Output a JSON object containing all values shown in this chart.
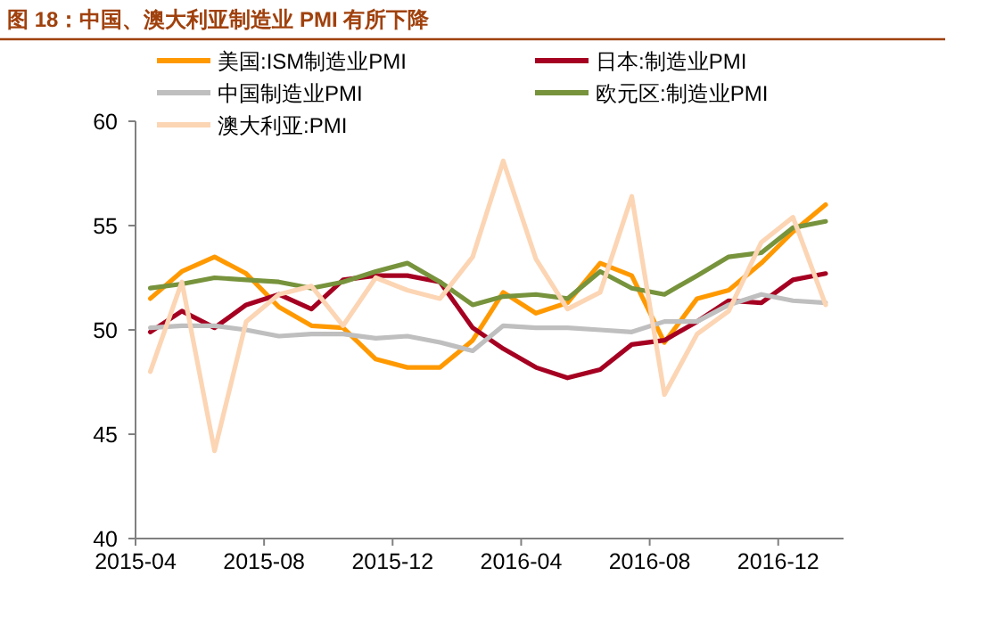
{
  "chart_data": {
    "type": "line",
    "title": "图 18：中国、澳大利亚制造业 PMI 有所下降",
    "x": [
      "2015-04-15",
      "2015-05-15",
      "2015-06-15",
      "2015-07-15",
      "2015-08-15",
      "2015-09-15",
      "2015-10-15",
      "2015-11-15",
      "2015-12-15",
      "2016-01-15",
      "2016-02-15",
      "2016-03-15",
      "2016-04-15",
      "2016-05-15",
      "2016-06-15",
      "2016-07-15",
      "2016-08-15",
      "2016-09-15",
      "2016-10-15",
      "2016-11-15",
      "2016-12-15",
      "2017-01-15"
    ],
    "series": [
      {
        "name": "美国:ISM制造业PMI",
        "color": "#ff9900",
        "values": [
          51.5,
          52.8,
          53.5,
          52.7,
          51.1,
          50.2,
          50.1,
          48.6,
          48.2,
          48.2,
          49.5,
          51.8,
          50.8,
          51.3,
          53.2,
          52.6,
          49.4,
          51.5,
          51.9,
          53.2,
          54.7,
          56.0
        ]
      },
      {
        "name": "日本:制造业PMI",
        "color": "#a50021",
        "values": [
          49.9,
          50.9,
          50.1,
          51.2,
          51.7,
          51.0,
          52.4,
          52.6,
          52.6,
          52.3,
          50.1,
          49.1,
          48.2,
          47.7,
          48.1,
          49.3,
          49.5,
          50.4,
          51.4,
          51.3,
          52.4,
          52.7
        ]
      },
      {
        "name": "中国制造业PMI",
        "color": "#bfbfbf",
        "values": [
          50.1,
          50.2,
          50.2,
          50.0,
          49.7,
          49.8,
          49.8,
          49.6,
          49.7,
          49.4,
          49.0,
          50.2,
          50.1,
          50.1,
          50.0,
          49.9,
          50.4,
          50.4,
          51.2,
          51.7,
          51.4,
          51.3
        ]
      },
      {
        "name": "欧元区:制造业PMI",
        "color": "#77933c",
        "values": [
          52.0,
          52.2,
          52.5,
          52.4,
          52.3,
          52.0,
          52.3,
          52.8,
          53.2,
          52.3,
          51.2,
          51.6,
          51.7,
          51.5,
          52.8,
          52.0,
          51.7,
          52.6,
          53.5,
          53.7,
          54.9,
          55.2
        ]
      },
      {
        "name": "澳大利亚:PMI",
        "color": "#fcd5b4",
        "values": [
          48.0,
          52.3,
          44.2,
          50.4,
          51.7,
          52.1,
          50.2,
          52.5,
          51.9,
          51.5,
          53.5,
          58.1,
          53.4,
          51.0,
          51.8,
          56.4,
          46.9,
          49.8,
          50.9,
          54.2,
          55.4,
          51.2
        ]
      }
    ],
    "xlim": [
      "2015-04-01",
      "2017-02-01"
    ],
    "xticks": [
      {
        "value": "2015-04-01",
        "label": "2015-04"
      },
      {
        "value": "2015-08-01",
        "label": "2015-08"
      },
      {
        "value": "2015-12-01",
        "label": "2015-12"
      },
      {
        "value": "2016-04-01",
        "label": "2016-04"
      },
      {
        "value": "2016-08-01",
        "label": "2016-08"
      },
      {
        "value": "2016-12-01",
        "label": "2016-12"
      }
    ],
    "ylim": [
      40,
      60
    ],
    "yticks": [
      40,
      45,
      50,
      55,
      60
    ],
    "grid": false,
    "legend": "top",
    "marker": "none",
    "line_style": "solid"
  }
}
